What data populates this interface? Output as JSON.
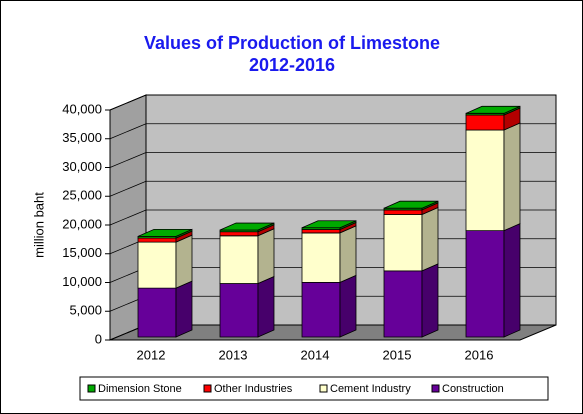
{
  "chart_data": {
    "type": "bar3d_stacked",
    "title": "Values of Production of Limestone",
    "subtitle": "2012-2016",
    "ylabel": "million baht",
    "categories": [
      "2012",
      "2013",
      "2014",
      "2015",
      "2016"
    ],
    "series": [
      {
        "name": "Construction",
        "color": "#660099",
        "values": [
          8500,
          9300,
          9500,
          11500,
          18500
        ]
      },
      {
        "name": "Cement Industry",
        "color": "#ffffcc",
        "values": [
          8000,
          8300,
          8600,
          9800,
          17500
        ]
      },
      {
        "name": "Other Industries",
        "color": "#ff0000",
        "values": [
          700,
          700,
          600,
          800,
          2600
        ]
      },
      {
        "name": "Dimension Stone",
        "color": "#00aa00",
        "values": [
          300,
          300,
          300,
          300,
          300
        ]
      }
    ],
    "ylim": [
      0,
      40000
    ],
    "yticks": [
      0,
      {
        "value": 5000,
        "label": "5,000"
      },
      {
        "value": 10000,
        "label": "10,000"
      },
      {
        "value": 15000,
        "label": "15,000"
      },
      {
        "value": 20000,
        "label": "20,000"
      },
      {
        "value": 25000,
        "label": "25,000"
      },
      {
        "value": 30000,
        "label": "30,000"
      },
      {
        "value": 35000,
        "label": "35,000"
      },
      {
        "value": 40000,
        "label": "40,000"
      }
    ],
    "grid": true,
    "legend": "bottom"
  }
}
